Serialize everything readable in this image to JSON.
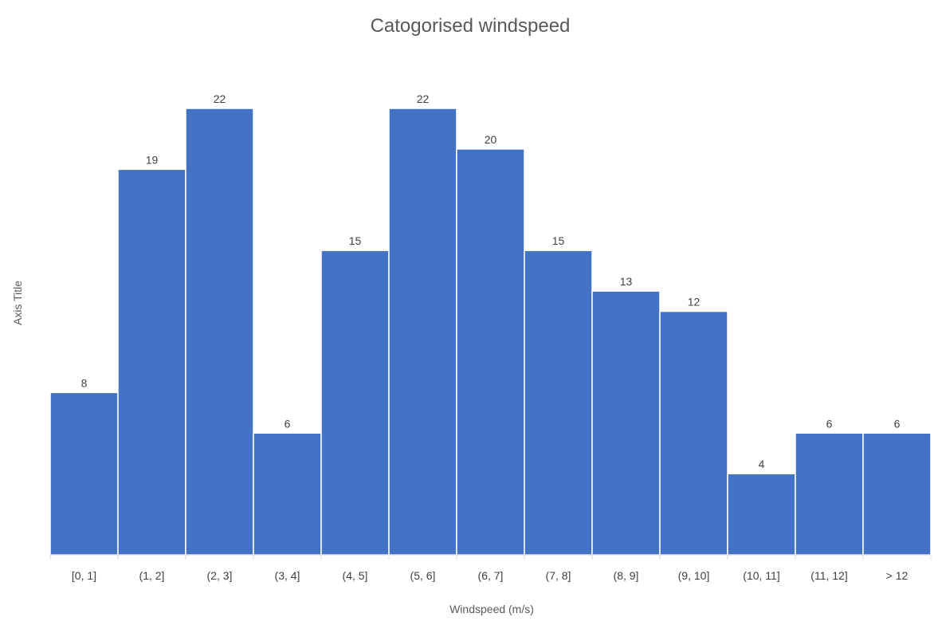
{
  "chart_data": {
    "type": "bar",
    "title": "Catogorised windspeed",
    "xlabel": "Windspeed (m/s)",
    "ylabel": "Axis Title",
    "categories": [
      "[0, 1]",
      "(1, 2]",
      "(2, 3]",
      "(3, 4]",
      "(4, 5]",
      "(5, 6]",
      "(6, 7]",
      "(7, 8]",
      "(8, 9]",
      "(9, 10]",
      "(10, 11]",
      "(11, 12]",
      "> 12"
    ],
    "values": [
      8,
      19,
      22,
      6,
      15,
      22,
      20,
      15,
      13,
      12,
      4,
      6,
      6
    ],
    "ylim": [
      0,
      22
    ],
    "grid": false,
    "data_labels": true,
    "bar_color": "#4472C4"
  }
}
